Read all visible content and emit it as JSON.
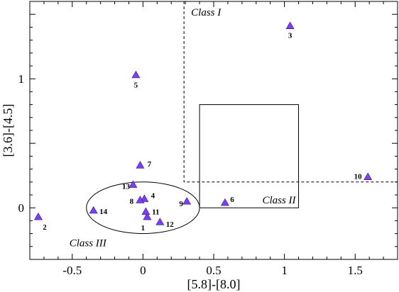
{
  "chart_data": {
    "type": "scatter",
    "title": "",
    "xlabel": "[5.8]-[8.0]",
    "ylabel": "[3.6]-[4.5]",
    "xlim": [
      -0.8,
      1.8
    ],
    "ylim": [
      -0.4,
      1.6
    ],
    "x_ticks": [
      -0.5,
      0,
      0.5,
      1,
      1.5
    ],
    "x_tick_labels": [
      "-0.5",
      "0",
      "0.5",
      "1",
      "1.5"
    ],
    "y_ticks": [
      0,
      1
    ],
    "y_tick_labels": [
      "0",
      "1"
    ],
    "grid": false,
    "marker_color": "#7b3ff2",
    "points": [
      {
        "label": "1",
        "x": 0.03,
        "y": -0.07
      },
      {
        "label": "2",
        "x": -0.74,
        "y": -0.07
      },
      {
        "label": "3",
        "x": 1.04,
        "y": 1.41
      },
      {
        "label": "4",
        "x": 0.01,
        "y": 0.07
      },
      {
        "label": "5",
        "x": -0.05,
        "y": 1.03
      },
      {
        "label": "6",
        "x": 0.58,
        "y": 0.04
      },
      {
        "label": "7",
        "x": -0.02,
        "y": 0.33
      },
      {
        "label": "8",
        "x": -0.02,
        "y": 0.06
      },
      {
        "label": "9",
        "x": 0.31,
        "y": 0.05
      },
      {
        "label": "10",
        "x": 1.59,
        "y": 0.24
      },
      {
        "label": "11",
        "x": 0.02,
        "y": -0.03
      },
      {
        "label": "12",
        "x": 0.12,
        "y": -0.11
      },
      {
        "label": "13",
        "x": -0.07,
        "y": 0.18
      },
      {
        "label": "14",
        "x": -0.35,
        "y": -0.02
      }
    ],
    "regions": {
      "class_i": {
        "label": "Class I",
        "x_min": 0.29,
        "y_min": 0.2
      },
      "class_ii": {
        "label": "Class II",
        "x": [
          0.4,
          1.1
        ],
        "y": [
          0.0,
          0.8
        ]
      },
      "class_iii": {
        "label": "Class III",
        "center": [
          0.0,
          0.0
        ],
        "rx": 0.4,
        "ry": 0.2
      }
    }
  }
}
